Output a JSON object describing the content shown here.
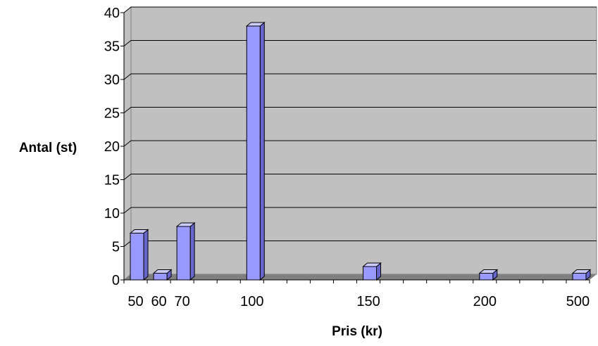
{
  "chart_data": {
    "type": "bar",
    "title": "",
    "xlabel": "Pris (kr)",
    "ylabel": "Antal (st)",
    "ylim": [
      0,
      40
    ],
    "yticks": [
      0,
      5,
      10,
      15,
      20,
      25,
      30,
      35,
      40
    ],
    "grid": true,
    "legend": "none",
    "bars": [
      {
        "x": 50,
        "label": "50",
        "value": 7
      },
      {
        "x": 60,
        "label": "60",
        "value": 1
      },
      {
        "x": 70,
        "label": "70",
        "value": 8
      },
      {
        "x": 100,
        "label": "100",
        "value": 38
      },
      {
        "x": 150,
        "label": "150",
        "value": 2
      },
      {
        "x": 200,
        "label": "200",
        "value": 1
      },
      {
        "x": 500,
        "label": "500",
        "value": 1
      }
    ],
    "colors": {
      "plot_bg": "#c0c0c0",
      "floor": "#808080",
      "bar_front": "#9999ff",
      "bar_side": "#6666cc",
      "bar_top": "#ccccff",
      "grid": "#000000"
    }
  }
}
